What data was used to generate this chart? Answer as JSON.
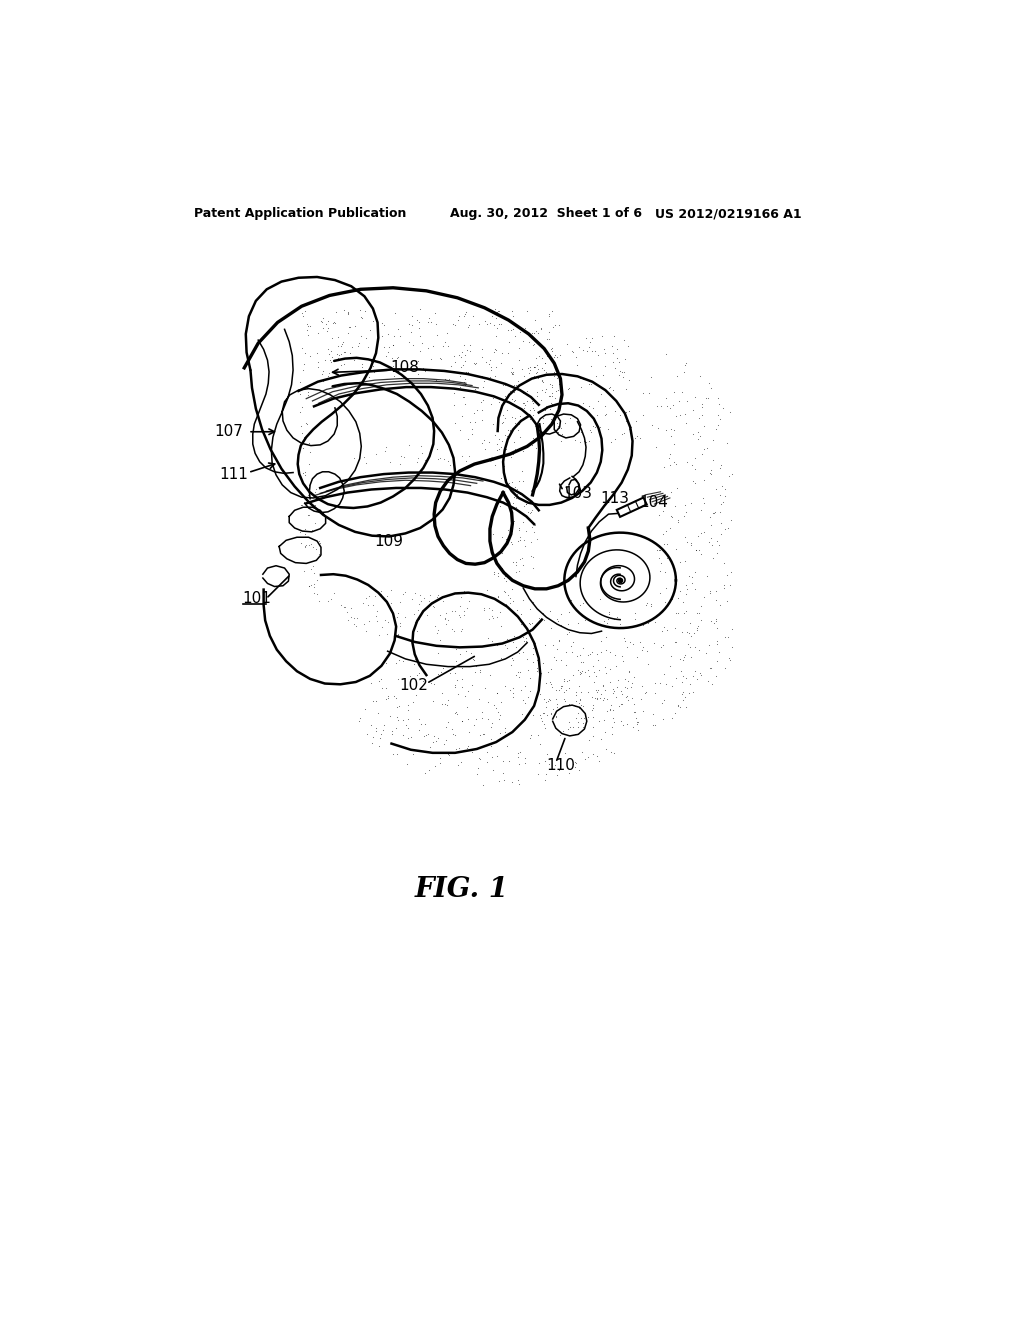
{
  "bg_color": "#ffffff",
  "header_left": "Patent Application Publication",
  "header_center": "Aug. 30, 2012  Sheet 1 of 6",
  "header_right": "US 2012/0219166 A1",
  "figure_label": "FIG. 1",
  "line_color": "#000000",
  "text_color": "#000000",
  "figsize": [
    10.24,
    13.2
  ],
  "dpi": 100,
  "lw_main": 1.8,
  "lw_thin": 1.1,
  "lw_thick": 2.4
}
